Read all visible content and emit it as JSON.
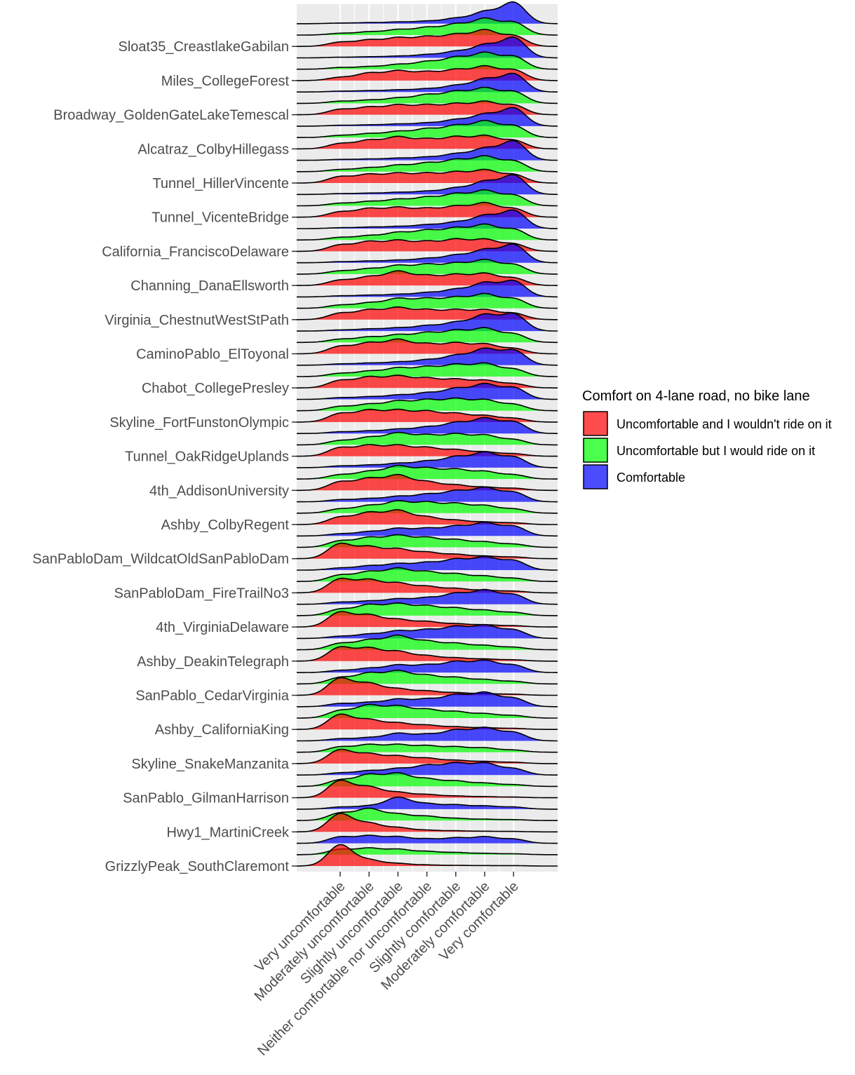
{
  "chart_data": {
    "type": "ridgeline",
    "x_levels": [
      "Very uncomfortable",
      "Moderately uncomfortable",
      "Slightly uncomfortable",
      "Neither comfortable nor uncomfortable",
      "Slightly comfortable",
      "Moderately comfortable",
      "Very comfortable"
    ],
    "categories": [
      "GrizzlyPeak_SouthClaremont",
      "Hwy1_MartiniCreek",
      "SanPablo_GilmanHarrison",
      "Skyline_SnakeManzanita",
      "Ashby_CaliforniaKing",
      "SanPablo_CedarVirginia",
      "Ashby_DeakinTelegraph",
      "4th_VirginiaDelaware",
      "SanPabloDam_FireTrailNo3",
      "SanPabloDam_WildcatOldSanPabloDam",
      "Ashby_ColbyRegent",
      "4th_AddisonUniversity",
      "Tunnel_OakRidgeUplands",
      "Skyline_FortFunstonOlympic",
      "Chabot_CollegePresley",
      "CaminoPablo_ElToyonal",
      "Virginia_ChestnutWestStPath",
      "Channing_DanaEllsworth",
      "California_FranciscoDelaware",
      "Tunnel_VicenteBridge",
      "Tunnel_HillerVincente",
      "Alcatraz_ColbyHillegass",
      "Broadway_GoldenGateLakeTemescal",
      "Miles_CollegeForest",
      "Sloat35_CreastlakeGabilan"
    ],
    "legend": {
      "title": "Comfort on 4-lane road, no bike lane",
      "position": "right",
      "entries": [
        {
          "name": "Uncomfortable and I wouldn't ride on it",
          "color": "#FF0000"
        },
        {
          "name": "Uncomfortable but I would ride on it",
          "color": "#00FF00"
        },
        {
          "name": "Comfortable",
          "color": "#0000FF"
        }
      ]
    },
    "fill_alpha": 0.7,
    "panel_background": "#EBEBEB",
    "grid": true,
    "groups": [
      "Uncomfortable and I wouldn't ride on it",
      "Uncomfortable but I would ride on it",
      "Comfortable"
    ],
    "series": [
      {
        "category": "GrizzlyPeak_SouthClaremont",
        "densities": {
          "Uncomfortable and I wouldn't ride on it": [
            1.0,
            0.28,
            0.12,
            0.05,
            0.03,
            0.02,
            0.02
          ],
          "Uncomfortable but I would ride on it": [
            0.25,
            0.3,
            0.25,
            0.15,
            0.1,
            0.06,
            0.04
          ],
          "Comfortable": [
            0.3,
            0.35,
            0.3,
            0.2,
            0.25,
            0.3,
            0.2
          ]
        }
      },
      {
        "category": "Hwy1_MartiniCreek",
        "densities": {
          "Uncomfortable and I wouldn't ride on it": [
            0.85,
            0.4,
            0.2,
            0.08,
            0.05,
            0.03,
            0.02
          ],
          "Uncomfortable but I would ride on it": [
            0.35,
            0.55,
            0.3,
            0.2,
            0.1,
            0.06,
            0.04
          ],
          "Comfortable": [
            0.1,
            0.15,
            0.55,
            0.25,
            0.2,
            0.15,
            0.1
          ]
        }
      },
      {
        "category": "SanPablo_GilmanHarrison",
        "densities": {
          "Uncomfortable and I wouldn't ride on it": [
            0.8,
            0.5,
            0.25,
            0.15,
            0.08,
            0.05,
            0.03
          ],
          "Uncomfortable but I would ride on it": [
            0.3,
            0.55,
            0.6,
            0.35,
            0.25,
            0.15,
            0.08
          ],
          "Comfortable": [
            0.1,
            0.2,
            0.3,
            0.45,
            0.55,
            0.55,
            0.3
          ]
        }
      },
      {
        "category": "Skyline_SnakeManzanita",
        "densities": {
          "Uncomfortable and I wouldn't ride on it": [
            0.65,
            0.45,
            0.35,
            0.25,
            0.15,
            0.1,
            0.06
          ],
          "Uncomfortable but I would ride on it": [
            0.25,
            0.35,
            0.35,
            0.3,
            0.25,
            0.2,
            0.1
          ],
          "Comfortable": [
            0.1,
            0.15,
            0.35,
            0.3,
            0.5,
            0.6,
            0.4
          ]
        }
      },
      {
        "category": "Ashby_CaliforniaKing",
        "densities": {
          "Uncomfortable and I wouldn't ride on it": [
            0.7,
            0.45,
            0.3,
            0.2,
            0.12,
            0.08,
            0.05
          ],
          "Uncomfortable but I would ride on it": [
            0.35,
            0.6,
            0.55,
            0.4,
            0.3,
            0.2,
            0.12
          ],
          "Comfortable": [
            0.15,
            0.2,
            0.35,
            0.35,
            0.55,
            0.65,
            0.4
          ]
        }
      },
      {
        "category": "SanPablo_CedarVirginia",
        "densities": {
          "Uncomfortable and I wouldn't ride on it": [
            0.8,
            0.55,
            0.3,
            0.2,
            0.12,
            0.08,
            0.05
          ],
          "Uncomfortable but I would ride on it": [
            0.3,
            0.5,
            0.6,
            0.4,
            0.3,
            0.2,
            0.12
          ],
          "Comfortable": [
            0.1,
            0.2,
            0.35,
            0.35,
            0.5,
            0.55,
            0.35
          ]
        }
      },
      {
        "category": "Ashby_DeakinTelegraph",
        "densities": {
          "Uncomfortable and I wouldn't ride on it": [
            0.65,
            0.6,
            0.45,
            0.25,
            0.15,
            0.1,
            0.06
          ],
          "Uncomfortable but I would ride on it": [
            0.3,
            0.45,
            0.65,
            0.4,
            0.3,
            0.2,
            0.12
          ],
          "Comfortable": [
            0.1,
            0.2,
            0.35,
            0.4,
            0.55,
            0.6,
            0.4
          ]
        }
      },
      {
        "category": "4th_VirginiaDelaware",
        "densities": {
          "Uncomfortable and I wouldn't ride on it": [
            0.7,
            0.55,
            0.35,
            0.25,
            0.15,
            0.1,
            0.06
          ],
          "Uncomfortable but I would ride on it": [
            0.3,
            0.5,
            0.55,
            0.45,
            0.35,
            0.25,
            0.15
          ],
          "Comfortable": [
            0.1,
            0.15,
            0.25,
            0.3,
            0.5,
            0.65,
            0.45
          ]
        }
      },
      {
        "category": "SanPabloDam_FireTrailNo3",
        "densities": {
          "Uncomfortable and I wouldn't ride on it": [
            0.65,
            0.6,
            0.45,
            0.3,
            0.2,
            0.12,
            0.08
          ],
          "Uncomfortable but I would ride on it": [
            0.3,
            0.45,
            0.6,
            0.45,
            0.35,
            0.25,
            0.15
          ],
          "Comfortable": [
            0.1,
            0.2,
            0.3,
            0.35,
            0.5,
            0.6,
            0.45
          ]
        }
      },
      {
        "category": "SanPabloDam_WildcatOldSanPabloDam",
        "densities": {
          "Uncomfortable and I wouldn't ride on it": [
            0.7,
            0.55,
            0.45,
            0.3,
            0.2,
            0.12,
            0.08
          ],
          "Uncomfortable but I would ride on it": [
            0.3,
            0.45,
            0.55,
            0.45,
            0.35,
            0.25,
            0.15
          ],
          "Comfortable": [
            0.1,
            0.2,
            0.35,
            0.35,
            0.45,
            0.6,
            0.45
          ]
        }
      },
      {
        "category": "Ashby_ColbyRegent",
        "densities": {
          "Uncomfortable and I wouldn't ride on it": [
            0.35,
            0.55,
            0.65,
            0.35,
            0.2,
            0.12,
            0.08
          ],
          "Uncomfortable but I would ride on it": [
            0.2,
            0.35,
            0.55,
            0.5,
            0.45,
            0.35,
            0.2
          ],
          "Comfortable": [
            0.1,
            0.15,
            0.25,
            0.35,
            0.5,
            0.65,
            0.45
          ]
        }
      },
      {
        "category": "4th_AddisonUniversity",
        "densities": {
          "Uncomfortable and I wouldn't ride on it": [
            0.4,
            0.55,
            0.7,
            0.4,
            0.25,
            0.15,
            0.1
          ],
          "Uncomfortable but I would ride on it": [
            0.2,
            0.35,
            0.6,
            0.5,
            0.45,
            0.35,
            0.2
          ],
          "Comfortable": [
            0.08,
            0.12,
            0.2,
            0.3,
            0.5,
            0.7,
            0.5
          ]
        }
      },
      {
        "category": "Tunnel_OakRidgeUplands",
        "densities": {
          "Uncomfortable and I wouldn't ride on it": [
            0.4,
            0.5,
            0.5,
            0.4,
            0.3,
            0.2,
            0.12
          ],
          "Uncomfortable but I would ride on it": [
            0.2,
            0.35,
            0.55,
            0.45,
            0.5,
            0.45,
            0.25
          ],
          "Comfortable": [
            0.08,
            0.12,
            0.2,
            0.3,
            0.5,
            0.7,
            0.55
          ]
        }
      },
      {
        "category": "Skyline_FortFunstonOlympic",
        "densities": {
          "Uncomfortable and I wouldn't ride on it": [
            0.4,
            0.55,
            0.55,
            0.5,
            0.4,
            0.3,
            0.18
          ],
          "Uncomfortable but I would ride on it": [
            0.2,
            0.3,
            0.45,
            0.5,
            0.55,
            0.5,
            0.3
          ],
          "Comfortable": [
            0.08,
            0.12,
            0.2,
            0.3,
            0.5,
            0.7,
            0.55
          ]
        }
      },
      {
        "category": "Chabot_CollegePresley",
        "densities": {
          "Uncomfortable and I wouldn't ride on it": [
            0.35,
            0.5,
            0.55,
            0.45,
            0.4,
            0.35,
            0.2
          ],
          "Uncomfortable but I would ride on it": [
            0.15,
            0.25,
            0.4,
            0.45,
            0.55,
            0.6,
            0.35
          ],
          "Comfortable": [
            0.06,
            0.1,
            0.15,
            0.25,
            0.45,
            0.75,
            0.7
          ]
        }
      },
      {
        "category": "CaminoPablo_ElToyonal",
        "densities": {
          "Uncomfortable and I wouldn't ride on it": [
            0.35,
            0.5,
            0.65,
            0.45,
            0.5,
            0.45,
            0.25
          ],
          "Uncomfortable but I would ride on it": [
            0.15,
            0.25,
            0.35,
            0.45,
            0.55,
            0.65,
            0.4
          ],
          "Comfortable": [
            0.05,
            0.1,
            0.15,
            0.25,
            0.4,
            0.75,
            0.8
          ]
        }
      },
      {
        "category": "Virginia_ChestnutWestStPath",
        "densities": {
          "Uncomfortable and I wouldn't ride on it": [
            0.3,
            0.45,
            0.55,
            0.45,
            0.45,
            0.45,
            0.3
          ],
          "Uncomfortable but I would ride on it": [
            0.15,
            0.25,
            0.45,
            0.45,
            0.5,
            0.65,
            0.45
          ],
          "Comfortable": [
            0.05,
            0.08,
            0.12,
            0.2,
            0.35,
            0.65,
            0.75
          ]
        }
      },
      {
        "category": "Channing_DanaEllsworth",
        "densities": {
          "Uncomfortable and I wouldn't ride on it": [
            0.25,
            0.4,
            0.65,
            0.45,
            0.5,
            0.55,
            0.35
          ],
          "Uncomfortable but I would ride on it": [
            0.15,
            0.25,
            0.4,
            0.45,
            0.5,
            0.65,
            0.45
          ],
          "Comfortable": [
            0.05,
            0.08,
            0.12,
            0.2,
            0.35,
            0.6,
            0.85
          ]
        }
      },
      {
        "category": "California_FranciscoDelaware",
        "densities": {
          "Uncomfortable and I wouldn't ride on it": [
            0.3,
            0.45,
            0.5,
            0.45,
            0.55,
            0.55,
            0.35
          ],
          "Uncomfortable but I would ride on it": [
            0.12,
            0.2,
            0.35,
            0.45,
            0.55,
            0.7,
            0.5
          ],
          "Comfortable": [
            0.04,
            0.07,
            0.1,
            0.18,
            0.3,
            0.6,
            0.85
          ]
        }
      },
      {
        "category": "Tunnel_VicenteBridge",
        "densities": {
          "Uncomfortable and I wouldn't ride on it": [
            0.25,
            0.4,
            0.45,
            0.4,
            0.5,
            0.65,
            0.4
          ],
          "Uncomfortable but I would ride on it": [
            0.12,
            0.2,
            0.3,
            0.4,
            0.55,
            0.7,
            0.5
          ],
          "Comfortable": [
            0.04,
            0.06,
            0.1,
            0.15,
            0.3,
            0.6,
            0.9
          ]
        }
      },
      {
        "category": "Tunnel_HillerVincente",
        "densities": {
          "Uncomfortable and I wouldn't ride on it": [
            0.3,
            0.4,
            0.45,
            0.45,
            0.5,
            0.6,
            0.4
          ],
          "Uncomfortable but I would ride on it": [
            0.1,
            0.18,
            0.3,
            0.4,
            0.55,
            0.7,
            0.5
          ],
          "Comfortable": [
            0.04,
            0.06,
            0.1,
            0.15,
            0.3,
            0.55,
            0.9
          ]
        }
      },
      {
        "category": "Alcatraz_ColbyHillegass",
        "densities": {
          "Uncomfortable and I wouldn't ride on it": [
            0.25,
            0.4,
            0.55,
            0.45,
            0.55,
            0.6,
            0.4
          ],
          "Uncomfortable but I would ride on it": [
            0.1,
            0.18,
            0.28,
            0.4,
            0.55,
            0.75,
            0.55
          ],
          "Comfortable": [
            0.04,
            0.06,
            0.1,
            0.15,
            0.3,
            0.55,
            0.85
          ]
        }
      },
      {
        "category": "Broadway_GoldenGateLakeTemescal",
        "densities": {
          "Uncomfortable and I wouldn't ride on it": [
            0.25,
            0.35,
            0.45,
            0.45,
            0.5,
            0.6,
            0.45
          ],
          "Uncomfortable but I would ride on it": [
            0.1,
            0.15,
            0.25,
            0.4,
            0.55,
            0.7,
            0.55
          ],
          "Comfortable": [
            0.04,
            0.06,
            0.1,
            0.15,
            0.3,
            0.6,
            0.85
          ]
        }
      },
      {
        "category": "Miles_CollegeForest",
        "densities": {
          "Uncomfortable and I wouldn't ride on it": [
            0.15,
            0.35,
            0.45,
            0.4,
            0.5,
            0.65,
            0.5
          ],
          "Uncomfortable but I would ride on it": [
            0.08,
            0.12,
            0.22,
            0.35,
            0.55,
            0.75,
            0.6
          ],
          "Comfortable": [
            0.03,
            0.05,
            0.08,
            0.15,
            0.3,
            0.6,
            0.95
          ]
        }
      },
      {
        "category": "Sloat35_CreastlakeGabilan",
        "densities": {
          "Uncomfortable and I wouldn't ride on it": [
            0.2,
            0.3,
            0.4,
            0.45,
            0.55,
            0.75,
            0.5
          ],
          "Uncomfortable but I would ride on it": [
            0.08,
            0.15,
            0.25,
            0.35,
            0.5,
            0.75,
            0.6
          ],
          "Comfortable": [
            0.03,
            0.05,
            0.08,
            0.12,
            0.25,
            0.55,
            1.0
          ]
        }
      }
    ]
  }
}
